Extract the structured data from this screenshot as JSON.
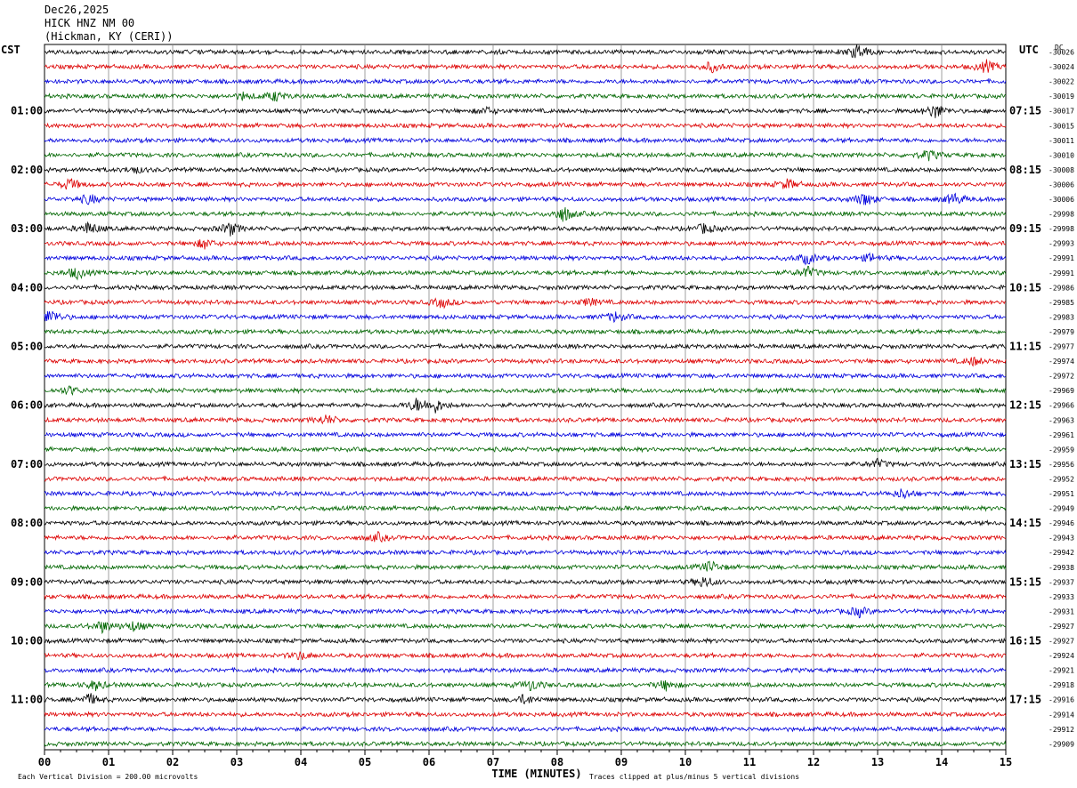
{
  "header": {
    "date": "Dec26,2025",
    "station": "HICK HNZ NM 00",
    "location": "(Hickman, KY (CERI))"
  },
  "colors": {
    "trace_cycle": [
      "#000000",
      "#dd0000",
      "#0000dd",
      "#006600"
    ],
    "grid": "#888888",
    "background": "#ffffff"
  },
  "chart_data": {
    "type": "line",
    "title": "",
    "xlabel": "TIME (MINUTES)",
    "ylabel": "",
    "left_axis_title": "CST",
    "right_axis_title": "UTC",
    "dc_label": "DC",
    "x_ticks": [
      "00",
      "01",
      "02",
      "03",
      "04",
      "05",
      "06",
      "07",
      "08",
      "09",
      "10",
      "11",
      "12",
      "13",
      "14",
      "15"
    ],
    "xlim": [
      0,
      15
    ],
    "grid": true,
    "trace_count": 48,
    "left_hour_labels": [
      {
        "trace": 4,
        "label": "01:00"
      },
      {
        "trace": 8,
        "label": "02:00"
      },
      {
        "trace": 12,
        "label": "03:00"
      },
      {
        "trace": 16,
        "label": "04:00"
      },
      {
        "trace": 20,
        "label": "05:00"
      },
      {
        "trace": 24,
        "label": "06:00"
      },
      {
        "trace": 28,
        "label": "07:00"
      },
      {
        "trace": 32,
        "label": "08:00"
      },
      {
        "trace": 36,
        "label": "09:00"
      },
      {
        "trace": 40,
        "label": "10:00"
      },
      {
        "trace": 44,
        "label": "11:00"
      }
    ],
    "right_hour_labels": [
      {
        "trace": 4,
        "label": "07:15"
      },
      {
        "trace": 8,
        "label": "08:15"
      },
      {
        "trace": 12,
        "label": "09:15"
      },
      {
        "trace": 16,
        "label": "10:15"
      },
      {
        "trace": 20,
        "label": "11:15"
      },
      {
        "trace": 24,
        "label": "12:15"
      },
      {
        "trace": 28,
        "label": "13:15"
      },
      {
        "trace": 32,
        "label": "14:15"
      },
      {
        "trace": 36,
        "label": "15:15"
      },
      {
        "trace": 40,
        "label": "16:15"
      },
      {
        "trace": 44,
        "label": "17:15"
      }
    ],
    "dc_offsets": [
      "-30026",
      "-30024",
      "-30022",
      "-30019",
      "-30017",
      "-30015",
      "-30011",
      "-30010",
      "-30008",
      "-30006",
      "-30006",
      "-29998",
      "-29998",
      "-29993",
      "-29991",
      "-29991",
      "-29986",
      "-29985",
      "-29983",
      "-29979",
      "-29977",
      "-29974",
      "-29972",
      "-29969",
      "-29966",
      "-29963",
      "-29961",
      "-29959",
      "-29956",
      "-29952",
      "-29951",
      "-29949",
      "-29946",
      "-29943",
      "-29942",
      "-29938",
      "-29937",
      "-29933",
      "-29931",
      "-29927",
      "-29927",
      "-29924",
      "-29921",
      "-29918",
      "-29916",
      "-29914",
      "-29912",
      "-29909"
    ],
    "events": [
      {
        "trace": 0,
        "minute": 12.7,
        "amp": 1.0
      },
      {
        "trace": 1,
        "minute": 10.4,
        "amp": 0.6
      },
      {
        "trace": 1,
        "minute": 14.7,
        "amp": 0.7
      },
      {
        "trace": 3,
        "minute": 3.1,
        "amp": 0.4
      },
      {
        "trace": 3,
        "minute": 3.6,
        "amp": 0.6
      },
      {
        "trace": 4,
        "minute": 13.9,
        "amp": 0.9
      },
      {
        "trace": 4,
        "minute": 6.9,
        "amp": 0.4
      },
      {
        "trace": 7,
        "minute": 13.8,
        "amp": 0.6
      },
      {
        "trace": 8,
        "minute": 1.4,
        "amp": 0.4
      },
      {
        "trace": 9,
        "minute": 0.4,
        "amp": 0.7
      },
      {
        "trace": 9,
        "minute": 11.6,
        "amp": 0.6
      },
      {
        "trace": 10,
        "minute": 0.7,
        "amp": 0.6
      },
      {
        "trace": 10,
        "minute": 12.8,
        "amp": 0.8
      },
      {
        "trace": 10,
        "minute": 14.2,
        "amp": 0.7
      },
      {
        "trace": 11,
        "minute": 8.1,
        "amp": 1.0
      },
      {
        "trace": 12,
        "minute": 0.7,
        "amp": 0.8
      },
      {
        "trace": 12,
        "minute": 2.9,
        "amp": 0.8
      },
      {
        "trace": 12,
        "minute": 10.3,
        "amp": 0.6
      },
      {
        "trace": 13,
        "minute": 2.5,
        "amp": 0.6
      },
      {
        "trace": 14,
        "minute": 11.9,
        "amp": 0.7
      },
      {
        "trace": 14,
        "minute": 12.9,
        "amp": 0.5
      },
      {
        "trace": 15,
        "minute": 0.5,
        "amp": 0.7
      },
      {
        "trace": 15,
        "minute": 11.9,
        "amp": 0.7
      },
      {
        "trace": 17,
        "minute": 6.2,
        "amp": 0.6
      },
      {
        "trace": 17,
        "minute": 8.5,
        "amp": 0.5
      },
      {
        "trace": 18,
        "minute": 0.1,
        "amp": 0.9
      },
      {
        "trace": 18,
        "minute": 8.9,
        "amp": 0.6
      },
      {
        "trace": 21,
        "minute": 14.5,
        "amp": 0.5
      },
      {
        "trace": 23,
        "minute": 0.4,
        "amp": 0.5
      },
      {
        "trace": 24,
        "minute": 5.8,
        "amp": 0.7
      },
      {
        "trace": 24,
        "minute": 6.1,
        "amp": 0.8
      },
      {
        "trace": 25,
        "minute": 4.4,
        "amp": 0.6
      },
      {
        "trace": 28,
        "minute": 13.0,
        "amp": 0.5
      },
      {
        "trace": 30,
        "minute": 13.4,
        "amp": 0.6
      },
      {
        "trace": 33,
        "minute": 5.2,
        "amp": 0.5
      },
      {
        "trace": 35,
        "minute": 10.4,
        "amp": 0.7
      },
      {
        "trace": 36,
        "minute": 10.3,
        "amp": 0.7
      },
      {
        "trace": 38,
        "minute": 12.7,
        "amp": 0.6
      },
      {
        "trace": 39,
        "minute": 0.9,
        "amp": 0.7
      },
      {
        "trace": 39,
        "minute": 1.4,
        "amp": 0.6
      },
      {
        "trace": 41,
        "minute": 4.0,
        "amp": 0.5
      },
      {
        "trace": 43,
        "minute": 0.8,
        "amp": 0.6
      },
      {
        "trace": 43,
        "minute": 7.6,
        "amp": 0.7
      },
      {
        "trace": 43,
        "minute": 9.7,
        "amp": 0.6
      },
      {
        "trace": 44,
        "minute": 0.7,
        "amp": 0.7
      },
      {
        "trace": 44,
        "minute": 7.5,
        "amp": 0.6
      }
    ]
  },
  "footer": {
    "scale_note": "Each Vertical Division =  200.00 microvolts",
    "clip_note": "Traces clipped at plus/minus 5 vertical divisions"
  }
}
